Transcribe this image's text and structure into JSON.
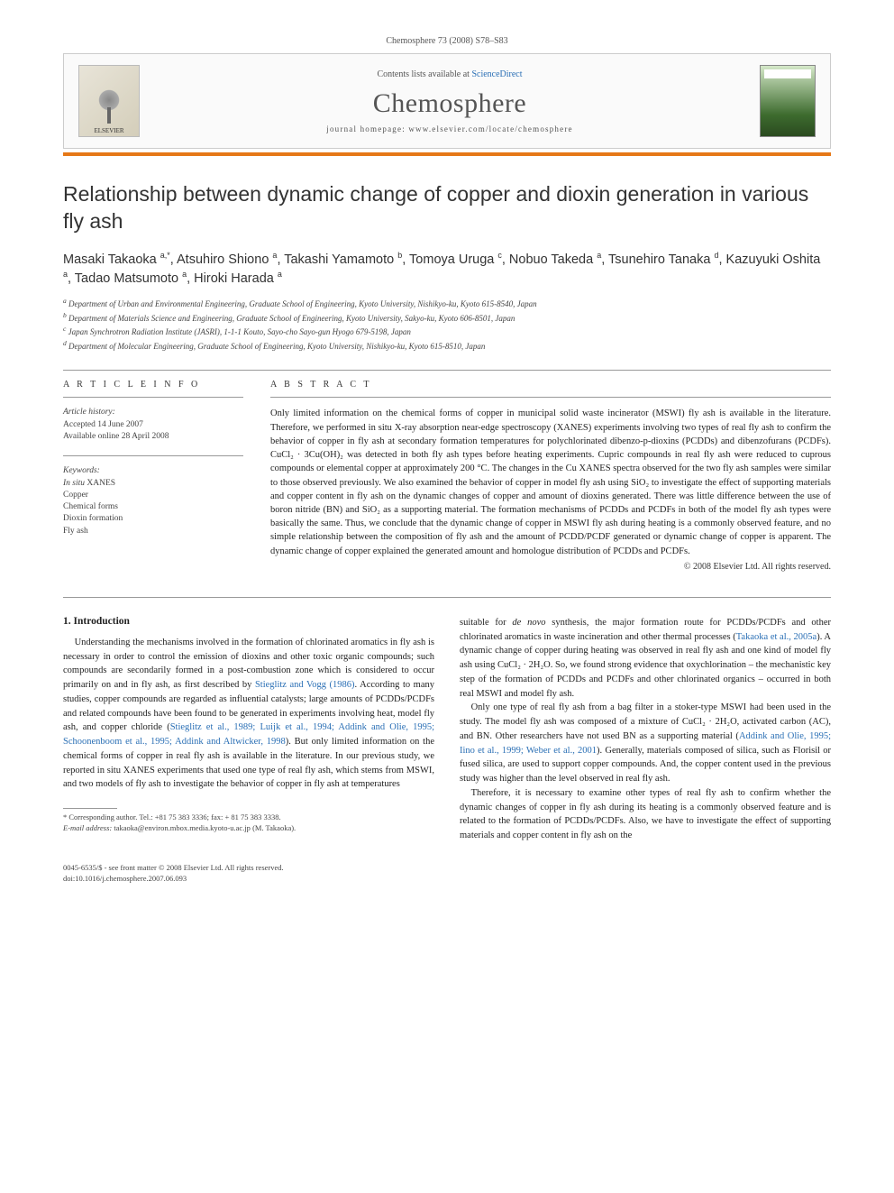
{
  "meta": {
    "citation": "Chemosphere 73 (2008) S78–S83",
    "contents_prefix": "Contents lists available at ",
    "contents_link": "ScienceDirect",
    "journal": "Chemosphere",
    "homepage_label": "journal homepage: www.elsevier.com/locate/chemosphere",
    "publisher_logo_label": "ELSEVIER"
  },
  "article": {
    "title": "Relationship between dynamic change of copper and dioxin generation in various fly ash",
    "authors_html": "Masaki Takaoka <sup>a,*</sup>, Atsuhiro Shiono <sup>a</sup>, Takashi Yamamoto <sup>b</sup>, Tomoya Uruga <sup>c</sup>, Nobuo Takeda <sup>a</sup>, Tsunehiro Tanaka <sup>d</sup>, Kazuyuki Oshita <sup>a</sup>, Tadao Matsumoto <sup>a</sup>, Hiroki Harada <sup>a</sup>",
    "affiliations": [
      "a Department of Urban and Environmental Engineering, Graduate School of Engineering, Kyoto University, Nishikyo-ku, Kyoto 615-8540, Japan",
      "b Department of Materials Science and Engineering, Graduate School of Engineering, Kyoto University, Sakyo-ku, Kyoto 606-8501, Japan",
      "c Japan Synchrotron Radiation Institute (JASRI), 1-1-1 Kouto, Sayo-cho Sayo-gun Hyogo 679-5198, Japan",
      "d Department of Molecular Engineering, Graduate School of Engineering, Kyoto University, Nishikyo-ku, Kyoto 615-8510, Japan"
    ]
  },
  "info": {
    "heading": "A R T I C L E   I N F O",
    "history_label": "Article history:",
    "accepted": "Accepted 14 June 2007",
    "online": "Available online 28 April 2008",
    "keywords_label": "Keywords:",
    "keywords": [
      "In situ XANES",
      "Copper",
      "Chemical forms",
      "Dioxin formation",
      "Fly ash"
    ]
  },
  "abstract": {
    "heading": "A B S T R A C T",
    "text": "Only limited information on the chemical forms of copper in municipal solid waste incinerator (MSWI) fly ash is available in the literature. Therefore, we performed in situ X-ray absorption near-edge spectroscopy (XANES) experiments involving two types of real fly ash to confirm the behavior of copper in fly ash at secondary formation temperatures for polychlorinated dibenzo-p-dioxins (PCDDs) and dibenzofurans (PCDFs). CuCl₂ · 3Cu(OH)₂ was detected in both fly ash types before heating experiments. Cupric compounds in real fly ash were reduced to cuprous compounds or elemental copper at approximately 200 °C. The changes in the Cu XANES spectra observed for the two fly ash samples were similar to those observed previously. We also examined the behavior of copper in model fly ash using SiO₂ to investigate the effect of supporting materials and copper content in fly ash on the dynamic changes of copper and amount of dioxins generated. There was little difference between the use of boron nitride (BN) and SiO₂ as a supporting material. The formation mechanisms of PCDDs and PCDFs in both of the model fly ash types were basically the same. Thus, we conclude that the dynamic change of copper in MSWI fly ash during heating is a commonly observed feature, and no simple relationship between the composition of fly ash and the amount of PCDD/PCDF generated or dynamic change of copper is apparent. The dynamic change of copper explained the generated amount and homologue distribution of PCDDs and PCDFs.",
    "copyright": "© 2008 Elsevier Ltd. All rights reserved."
  },
  "body": {
    "section1_heading": "1. Introduction",
    "col1_p1": "Understanding the mechanisms involved in the formation of chlorinated aromatics in fly ash is necessary in order to control the emission of dioxins and other toxic organic compounds; such compounds are secondarily formed in a post-combustion zone which is considered to occur primarily on and in fly ash, as first described by Stieglitz and Vogg (1986). According to many studies, copper compounds are regarded as influential catalysts; large amounts of PCDDs/PCDFs and related compounds have been found to be generated in experiments involving heat, model fly ash, and copper chloride (Stieglitz et al., 1989; Luijk et al., 1994; Addink and Olie, 1995; Schoonenboom et al., 1995; Addink and Altwicker, 1998). But only limited information on the chemical forms of copper in real fly ash is available in the literature. In our previous study, we reported in situ XANES experiments that used one type of real fly ash, which stems from MSWI, and two models of fly ash to investigate the behavior of copper in fly ash at temperatures",
    "col2_p1": "suitable for de novo synthesis, the major formation route for PCDDs/PCDFs and other chlorinated aromatics in waste incineration and other thermal processes (Takaoka et al., 2005a). A dynamic change of copper during heating was observed in real fly ash and one kind of model fly ash using CuCl₂ · 2H₂O. So, we found strong evidence that oxychlorination – the mechanistic key step of the formation of PCDDs and PCDFs and other chlorinated organics – occurred in both real MSWI and model fly ash.",
    "col2_p2": "Only one type of real fly ash from a bag filter in a stoker-type MSWI had been used in the study. The model fly ash was composed of a mixture of CuCl₂ · 2H₂O, activated carbon (AC), and BN. Other researchers have not used BN as a supporting material (Addink and Olie, 1995; Iino et al., 1999; Weber et al., 2001). Generally, materials composed of silica, such as Florisil or fused silica, are used to support copper compounds. And, the copper content used in the previous study was higher than the level observed in real fly ash.",
    "col2_p3": "Therefore, it is necessary to examine other types of real fly ash to confirm whether the dynamic changes of copper in fly ash during its heating is a commonly observed feature and is related to the formation of PCDDs/PCDFs. Also, we have to investigate the effect of supporting materials and copper content in fly ash on the"
  },
  "footnote": {
    "corresponding": "* Corresponding author. Tel.: +81 75 383 3336; fax: + 81 75 383 3338.",
    "email_label": "E-mail address:",
    "email": "takaoka@environ.mbox.media.kyoto-u.ac.jp",
    "email_suffix": "(M. Takaoka)."
  },
  "footer": {
    "line1": "0045-6535/$ - see front matter © 2008 Elsevier Ltd. All rights reserved.",
    "line2": "doi:10.1016/j.chemosphere.2007.06.093"
  },
  "colors": {
    "accent_bar": "#e67817",
    "link": "#2a6fb5",
    "rule": "#999999"
  }
}
